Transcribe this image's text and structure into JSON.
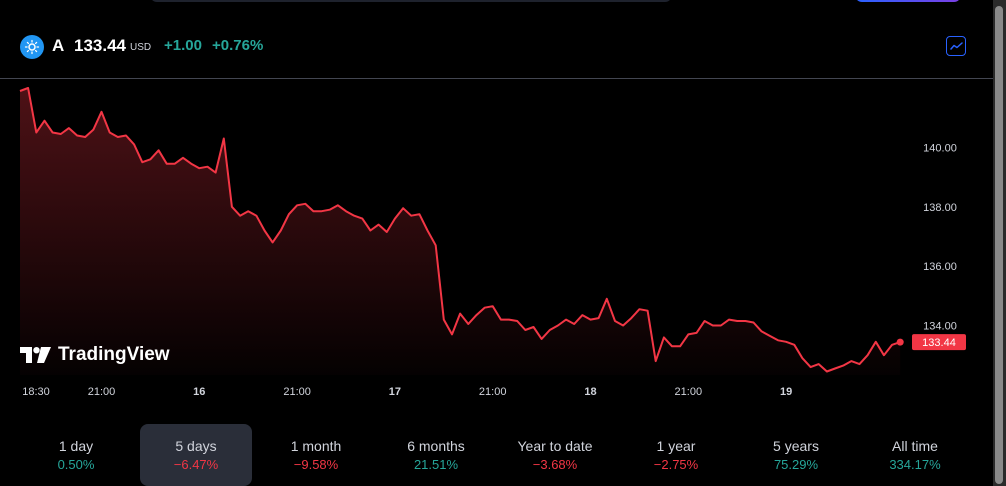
{
  "header": {
    "ticker": "A",
    "price": "133.44",
    "currency": "USD",
    "change": "+1.00",
    "change_pct": "+0.76%"
  },
  "brand": {
    "name": "TradingView"
  },
  "colors": {
    "line": "#f23645",
    "positive": "#26a69a",
    "negative": "#f23645",
    "logo": "#2196f3",
    "accent": "#2962ff"
  },
  "icons": {
    "logo": "sun-icon",
    "chart_toggle": "line-chart-icon"
  },
  "periods": [
    {
      "label": "1 day",
      "value": "0.50%",
      "trend": "pos"
    },
    {
      "label": "5 days",
      "value": "−6.47%",
      "trend": "neg",
      "active": true
    },
    {
      "label": "1 month",
      "value": "−9.58%",
      "trend": "neg"
    },
    {
      "label": "6 months",
      "value": "21.51%",
      "trend": "pos"
    },
    {
      "label": "Year to date",
      "value": "−3.68%",
      "trend": "neg"
    },
    {
      "label": "1 year",
      "value": "−2.75%",
      "trend": "neg"
    },
    {
      "label": "5 years",
      "value": "75.29%",
      "trend": "pos"
    },
    {
      "label": "All time",
      "value": "334.17%",
      "trend": "pos"
    }
  ],
  "chart_data": {
    "type": "area",
    "title": "",
    "xlabel": "",
    "ylabel": "",
    "ylim": [
      132.4,
      142.0
    ],
    "yticks": [
      "140.00",
      "138.00",
      "136.00",
      "134.00"
    ],
    "ytick_values": [
      140,
      138,
      136,
      134
    ],
    "xticks": [
      {
        "label": "18:30",
        "index": 0,
        "bold": false
      },
      {
        "label": "21:00",
        "index": 10,
        "bold": false
      },
      {
        "label": "16",
        "index": 22,
        "bold": true
      },
      {
        "label": "21:00",
        "index": 34,
        "bold": false
      },
      {
        "label": "17",
        "index": 46,
        "bold": true
      },
      {
        "label": "21:00",
        "index": 58,
        "bold": false
      },
      {
        "label": "18",
        "index": 70,
        "bold": true
      },
      {
        "label": "21:00",
        "index": 82,
        "bold": false
      },
      {
        "label": "19",
        "index": 94,
        "bold": true
      }
    ],
    "last_value_label": "133.44",
    "values": [
      141.9,
      142.0,
      140.5,
      140.9,
      140.5,
      140.45,
      140.65,
      140.4,
      140.35,
      140.6,
      141.2,
      140.5,
      140.35,
      140.4,
      140.1,
      139.5,
      139.6,
      139.9,
      139.45,
      139.45,
      139.65,
      139.45,
      139.3,
      139.35,
      139.15,
      140.3,
      138.0,
      137.7,
      137.85,
      137.7,
      137.2,
      136.8,
      137.2,
      137.75,
      138.05,
      138.1,
      137.85,
      137.85,
      137.9,
      138.05,
      137.85,
      137.7,
      137.6,
      137.2,
      137.4,
      137.15,
      137.6,
      137.95,
      137.7,
      137.75,
      137.2,
      136.7,
      134.2,
      133.7,
      134.4,
      134.05,
      134.35,
      134.6,
      134.65,
      134.2,
      134.2,
      134.15,
      133.85,
      133.95,
      133.55,
      133.85,
      134.0,
      134.2,
      134.05,
      134.35,
      134.2,
      134.25,
      134.9,
      134.15,
      134.0,
      134.25,
      134.55,
      134.5,
      132.8,
      133.6,
      133.3,
      133.3,
      133.7,
      133.75,
      134.15,
      134.0,
      134.0,
      134.2,
      134.15,
      134.15,
      134.1,
      133.8,
      133.65,
      133.5,
      133.45,
      133.35,
      132.9,
      132.6,
      132.7,
      132.45,
      132.55,
      132.65,
      132.8,
      132.7,
      133.0,
      133.45,
      133.0,
      133.35,
      133.44
    ]
  }
}
